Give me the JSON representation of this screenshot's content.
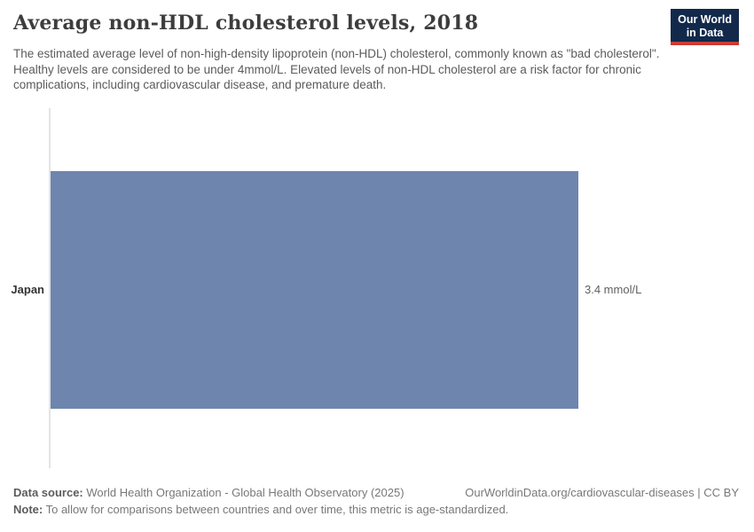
{
  "header": {
    "title": "Average non-HDL cholesterol levels, 2018",
    "subtitle": "The estimated average level of non-high-density lipoprotein (non-HDL) cholesterol, commonly known as \"bad cholesterol\". Healthy levels are considered to be under 4mmol/L. Elevated levels of non-HDL cholesterol are a risk factor for chronic complications, including cardiovascular disease, and premature death.",
    "logo": {
      "line1": "Our World",
      "line2": "in Data"
    }
  },
  "chart_data": {
    "type": "bar",
    "orientation": "horizontal",
    "title": "Average non-HDL cholesterol levels, 2018",
    "categories": [
      "Japan"
    ],
    "values": [
      3.4
    ],
    "unit": "mmol/L",
    "value_labels": [
      "3.4 mmol/L"
    ],
    "xlim": [
      0,
      3.4
    ],
    "grid": false,
    "legend_position": "none",
    "bar_color": "#6e85ad"
  },
  "footer": {
    "data_source_label": "Data source:",
    "data_source": "World Health Organization - Global Health Observatory (2025)",
    "link": "OurWorldinData.org/cardiovascular-diseases | CC BY",
    "note_label": "Note:",
    "note": "To allow for comparisons between countries and over time, this metric is age-standardized."
  },
  "colors": {
    "bar": "#6e85ad",
    "axis-line": "#e4e4e4",
    "logo-navy": "#12294b",
    "logo-red": "#c93c34",
    "title-text": "#3d3d3d",
    "body-text": "#5b5b5b",
    "footer-text": "#787878"
  }
}
